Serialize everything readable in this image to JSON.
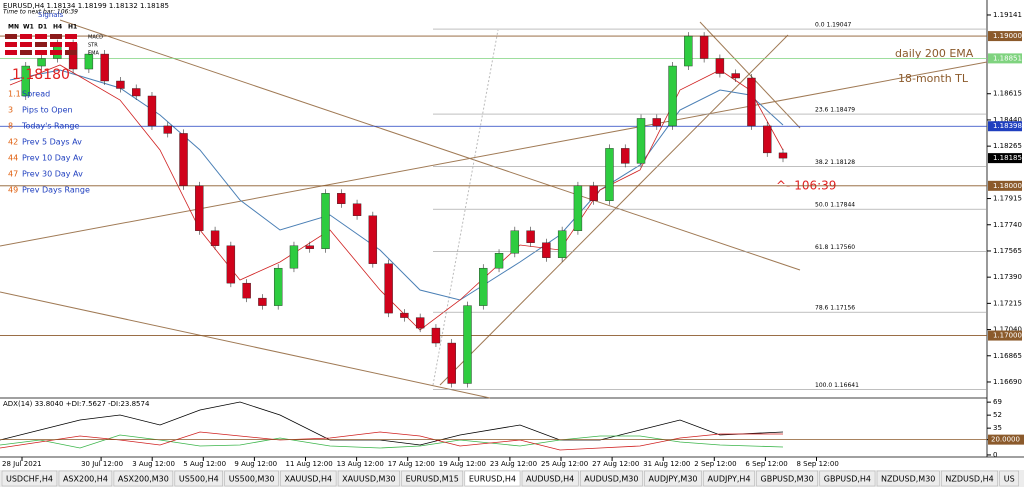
{
  "header": {
    "symbol_line": "EURUSD,H4  1.18134 1.18199 1.18132 1.18185",
    "timer_line": "Time to next bar: 106:39"
  },
  "signals": {
    "title": "Signals",
    "timeframes": [
      "MN",
      "W1",
      "D1",
      "H4",
      "H1"
    ],
    "rows": [
      "MACD",
      "STR",
      "EMA"
    ]
  },
  "info_panel": {
    "price": "1.18180",
    "rows": [
      {
        "value": "1.1",
        "label": "Spread"
      },
      {
        "value": "3",
        "label": "Pips to Open"
      },
      {
        "value": "8",
        "label": "Today's Range"
      },
      {
        "value": "42",
        "label": "Prev 5 Days Av"
      },
      {
        "value": "44",
        "label": "Prev 10 Day Av"
      },
      {
        "value": "47",
        "label": "Prev 30 Day Av"
      },
      {
        "value": "49",
        "label": "Prev Days Range"
      }
    ]
  },
  "annotations": {
    "ema": "daily 200 EMA",
    "trendline": "18-month TL",
    "countdown": "^- 106:39"
  },
  "price_axis": {
    "ylim": [
      1.16583,
      1.19241
    ],
    "yticks": [
      {
        "value": 1.19141,
        "label": "1.19141"
      },
      {
        "value": 1.18615,
        "label": "1.18615"
      },
      {
        "value": 1.1844,
        "label": "1.18440"
      },
      {
        "value": 1.18265,
        "label": "1.18265"
      },
      {
        "value": 1.17915,
        "label": "1.17915"
      },
      {
        "value": 1.1774,
        "label": "1.17740"
      },
      {
        "value": 1.17565,
        "label": "1.17565"
      },
      {
        "value": 1.1739,
        "label": "1.17390"
      },
      {
        "value": 1.17215,
        "label": "1.17215"
      },
      {
        "value": 1.1704,
        "label": "1.17040"
      },
      {
        "value": 1.16865,
        "label": "1.16865"
      },
      {
        "value": 1.1669,
        "label": "1.16690"
      }
    ],
    "levels": [
      {
        "value": 1.19,
        "label": "1.19000",
        "color": "#8b5a2b"
      },
      {
        "value": 1.18851,
        "label": "1.18851",
        "color": "#7fd37f"
      },
      {
        "value": 1.18398,
        "label": "1.18398",
        "color": "#1f3fbf"
      },
      {
        "value": 1.18185,
        "label": "1.18185",
        "color": "#000000"
      },
      {
        "value": 1.18,
        "label": "1.18000",
        "color": "#8b5a2b"
      },
      {
        "value": 1.17,
        "label": "1.17000",
        "color": "#8b5a2b"
      }
    ]
  },
  "fibonacci": [
    {
      "value": 1.19047,
      "label": "0.0  1.19047"
    },
    {
      "value": 1.18479,
      "label": "23.6  1.18479"
    },
    {
      "value": 1.18128,
      "label": "38.2  1.18128"
    },
    {
      "value": 1.17844,
      "label": "50.0  1.17844"
    },
    {
      "value": 1.1756,
      "label": "61.8  1.17560"
    },
    {
      "value": 1.17156,
      "label": "78.6  1.17156"
    },
    {
      "value": 1.16641,
      "label": "100.0  1.16641"
    }
  ],
  "closes": [
    1.186,
    1.188,
    1.1885,
    1.1895,
    1.1878,
    1.1888,
    1.187,
    1.1865,
    1.186,
    1.184,
    1.1835,
    1.18,
    1.177,
    1.176,
    1.1735,
    1.1725,
    1.172,
    1.1745,
    1.176,
    1.1758,
    1.1795,
    1.1788,
    1.178,
    1.1748,
    1.1715,
    1.1712,
    1.1705,
    1.1695,
    1.1668,
    1.172,
    1.1745,
    1.1755,
    1.177,
    1.1762,
    1.1752,
    1.177,
    1.18,
    1.179,
    1.1825,
    1.1815,
    1.1845,
    1.184,
    1.188,
    1.19,
    1.1885,
    1.1875,
    1.1872,
    1.184,
    1.1822,
    1.18185
  ],
  "adx_panel": {
    "title": "ADX(14) 33.8040 +DI:7.5627 -DI:23.8574",
    "ylim": [
      -2.7,
      74.4
    ],
    "yticks": [
      69,
      52,
      35,
      {
        "value": 20,
        "label": "20.0000"
      },
      0
    ]
  },
  "dates": [
    "28 Jul 2021",
    "30 Jul 12:00",
    "3 Aug 12:00",
    "5 Aug 12:00",
    "9 Aug 12:00",
    "11 Aug 12:00",
    "13 Aug 12:00",
    "17 Aug 12:00",
    "19 Aug 12:00",
    "23 Aug 12:00",
    "25 Aug 12:00",
    "27 Aug 12:00",
    "31 Aug 12:00",
    "2 Sep 12:00",
    "6 Sep 12:00",
    "8 Sep 12:00"
  ],
  "tabs": [
    "USDCHF,H4",
    "ASX200,H4",
    "ASX200,M30",
    "US500,H4",
    "US500,M30",
    "XAUUSD,H4",
    "XAUUSD,M30",
    "EURUSD,M15",
    "EURUSD,H4",
    "AUDUSD,H4",
    "AUDUSD,M30",
    "AUDJPY,M30",
    "AUDJPY,H4",
    "GBPUSD,M30",
    "GBPUSD,H4",
    "NZDUSD,M30",
    "NZDUSD,H4",
    "US"
  ],
  "active_tab": 8
}
